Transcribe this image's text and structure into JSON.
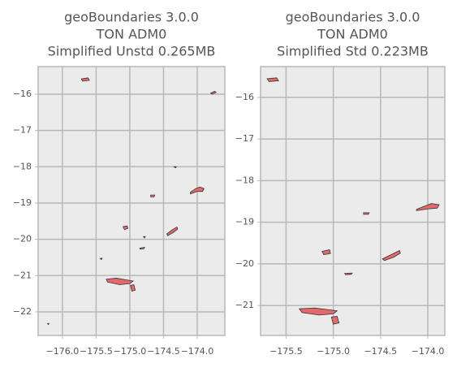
{
  "chart_data": [
    {
      "type": "map",
      "title": [
        "geoBoundaries 3.0.0",
        "TON ADM0",
        "Simplified Unstd 0.265MB"
      ],
      "xlim": [
        -176.36,
        -173.59
      ],
      "ylim": [
        -22.65,
        -15.24
      ],
      "xticks": [
        {
          "value": -176.0,
          "label": "−176.0"
        },
        {
          "value": -175.5,
          "label": "−175.5"
        },
        {
          "value": -175.0,
          "label": "−175.0"
        },
        {
          "value": -174.5,
          "label": "−174.5"
        },
        {
          "value": -174.0,
          "label": "−174.0"
        }
      ],
      "yticks": [
        {
          "value": -16,
          "label": "−16"
        },
        {
          "value": -17,
          "label": "−17"
        },
        {
          "value": -18,
          "label": "−18"
        },
        {
          "value": -19,
          "label": "−19"
        },
        {
          "value": -20,
          "label": "−20"
        },
        {
          "value": -21,
          "label": "−21"
        },
        {
          "value": -22,
          "label": "−22"
        }
      ],
      "grid": true,
      "color": "#e4686c",
      "edgecolor": "#333333",
      "polygons": [
        {
          "x": [
            -175.72,
            -175.62,
            -175.6,
            -175.7
          ],
          "y": [
            -15.58,
            -15.55,
            -15.62,
            -15.64
          ]
        },
        {
          "x": [
            -173.8,
            -173.74,
            -173.72,
            -173.78
          ],
          "y": [
            -15.97,
            -15.92,
            -15.95,
            -16.0
          ]
        },
        {
          "x": [
            -174.35,
            -174.31,
            -174.32
          ],
          "y": [
            -18.0,
            -18.0,
            -18.03
          ]
        },
        {
          "x": [
            -174.69,
            -174.63,
            -174.64,
            -174.69
          ],
          "y": [
            -18.78,
            -18.78,
            -18.83,
            -18.83
          ]
        },
        {
          "x": [
            -174.1,
            -174.02,
            -173.96,
            -173.9,
            -173.92,
            -174.0,
            -174.1
          ],
          "y": [
            -18.7,
            -18.6,
            -18.56,
            -18.6,
            -18.68,
            -18.68,
            -18.75
          ]
        },
        {
          "x": [
            -175.1,
            -175.04,
            -175.03,
            -175.08
          ],
          "y": [
            -19.65,
            -19.63,
            -19.7,
            -19.73
          ]
        },
        {
          "x": [
            -174.45,
            -174.38,
            -174.3,
            -174.29,
            -174.36,
            -174.44
          ],
          "y": [
            -19.85,
            -19.75,
            -19.66,
            -19.72,
            -19.82,
            -19.9
          ]
        },
        {
          "x": [
            -174.8,
            -174.77,
            -174.78
          ],
          "y": [
            -19.93,
            -19.92,
            -19.96
          ]
        },
        {
          "x": [
            -174.85,
            -174.78,
            -174.79,
            -174.85
          ],
          "y": [
            -20.24,
            -20.22,
            -20.26,
            -20.27
          ]
        },
        {
          "x": [
            -175.44,
            -175.41,
            -175.42
          ],
          "y": [
            -20.53,
            -20.52,
            -20.56
          ]
        },
        {
          "x": [
            -175.35,
            -175.2,
            -175.05,
            -174.95,
            -175.0,
            -175.15,
            -175.33
          ],
          "y": [
            -21.1,
            -21.07,
            -21.12,
            -21.15,
            -21.22,
            -21.25,
            -21.18
          ]
        },
        {
          "x": [
            -174.99,
            -174.94,
            -174.92,
            -174.97
          ],
          "y": [
            -21.27,
            -21.25,
            -21.4,
            -21.43
          ]
        },
        {
          "x": [
            -176.22,
            -176.2,
            -176.21
          ],
          "y": [
            -22.32,
            -22.32,
            -22.35
          ]
        }
      ]
    },
    {
      "type": "map",
      "title": [
        "geoBoundaries 3.0.0",
        "TON ADM0",
        "Simplified Std 0.223MB"
      ],
      "xlim": [
        -175.77,
        -173.82
      ],
      "ylim": [
        -21.72,
        -15.26
      ],
      "xticks": [
        {
          "value": -175.5,
          "label": "−175.5"
        },
        {
          "value": -175.0,
          "label": "−175.0"
        },
        {
          "value": -174.5,
          "label": "−174.5"
        },
        {
          "value": -174.0,
          "label": "−174.0"
        }
      ],
      "yticks": [
        {
          "value": -16,
          "label": "−16"
        },
        {
          "value": -17,
          "label": "−17"
        },
        {
          "value": -18,
          "label": "−18"
        },
        {
          "value": -19,
          "label": "−19"
        },
        {
          "value": -20,
          "label": "−20"
        },
        {
          "value": -21,
          "label": "−21"
        }
      ],
      "grid": true,
      "color": "#e4686c",
      "edgecolor": "#333333",
      "polygons": [
        {
          "x": [
            -175.7,
            -175.6,
            -175.58,
            -175.68
          ],
          "y": [
            -15.55,
            -15.53,
            -15.6,
            -15.62
          ]
        },
        {
          "x": [
            -174.68,
            -174.62,
            -174.63,
            -174.68
          ],
          "y": [
            -18.77,
            -18.77,
            -18.81,
            -18.81
          ]
        },
        {
          "x": [
            -174.12,
            -174.02,
            -173.96,
            -173.88,
            -173.9,
            -174.0,
            -174.12
          ],
          "y": [
            -18.69,
            -18.6,
            -18.55,
            -18.58,
            -18.66,
            -18.68,
            -18.72
          ]
        },
        {
          "x": [
            -175.12,
            -175.04,
            -175.03,
            -175.1
          ],
          "y": [
            -19.7,
            -19.66,
            -19.75,
            -19.78
          ]
        },
        {
          "x": [
            -174.48,
            -174.38,
            -174.3,
            -174.29,
            -174.36,
            -174.46
          ],
          "y": [
            -19.88,
            -19.77,
            -19.68,
            -19.74,
            -19.84,
            -19.92
          ]
        },
        {
          "x": [
            -174.88,
            -174.8,
            -174.81,
            -174.87
          ],
          "y": [
            -20.23,
            -20.22,
            -20.25,
            -20.26
          ]
        },
        {
          "x": [
            -175.36,
            -175.2,
            -175.05,
            -174.96,
            -175.0,
            -175.15,
            -175.33
          ],
          "y": [
            -21.08,
            -21.06,
            -21.1,
            -21.13,
            -21.2,
            -21.23,
            -21.17
          ]
        },
        {
          "x": [
            -175.02,
            -174.96,
            -174.94,
            -175.0
          ],
          "y": [
            -21.28,
            -21.26,
            -21.42,
            -21.45
          ]
        }
      ]
    }
  ]
}
